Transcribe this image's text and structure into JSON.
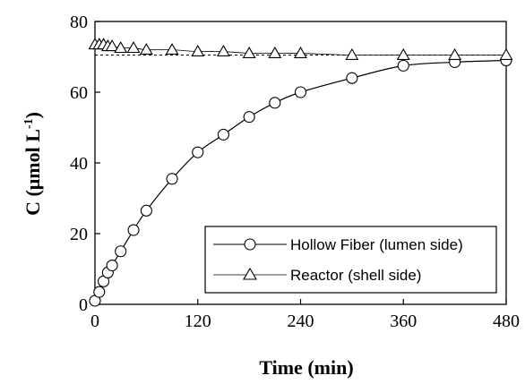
{
  "chart_data": {
    "type": "line",
    "xlabel": "Time (min)",
    "ylabel_main": "C (μmol L",
    "ylabel_sup": "-1",
    "ylabel_close": ")",
    "xlim": [
      0,
      480
    ],
    "ylim": [
      0,
      80
    ],
    "xticks": [
      0,
      120,
      240,
      360,
      480
    ],
    "yticks": [
      0,
      20,
      40,
      60,
      80
    ],
    "grid": false,
    "legend_position": "bottom-right",
    "series": [
      {
        "name": "Hollow Fiber (lumen side)",
        "marker": "circle",
        "line_style": "solid",
        "color": "#000000",
        "x": [
          0,
          5,
          10,
          15,
          20,
          30,
          45,
          60,
          90,
          120,
          150,
          180,
          210,
          240,
          300,
          360,
          420,
          480
        ],
        "y": [
          1,
          3.5,
          6.5,
          9,
          11,
          15,
          21,
          26.5,
          35.5,
          43,
          48,
          53,
          57,
          60,
          64,
          67.5,
          68.5,
          69
        ]
      },
      {
        "name": "Reactor (shell side)",
        "marker": "triangle",
        "line_style": "solid",
        "color": "#000000",
        "x": [
          0,
          5,
          10,
          15,
          20,
          30,
          45,
          60,
          90,
          120,
          150,
          180,
          210,
          240,
          300,
          360,
          420,
          480
        ],
        "y": [
          73.5,
          73.5,
          73.5,
          73,
          73,
          72.5,
          72.5,
          72,
          72,
          71.5,
          71.5,
          71,
          71,
          71,
          70.5,
          70.5,
          70.5,
          70.5
        ]
      }
    ],
    "reference_line": {
      "y": 70.5,
      "line_style": "dashed"
    }
  }
}
